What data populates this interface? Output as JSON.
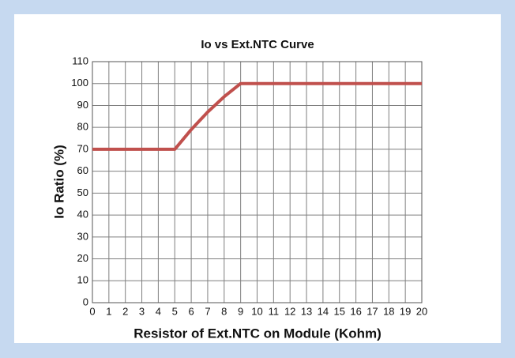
{
  "chart_data": {
    "type": "line",
    "title": "Io vs Ext.NTC Curve",
    "x_label": "Resistor of Ext.NTC on Module (Kohm)",
    "y_label": "Io Ratio (%)",
    "x": [
      0,
      5,
      6,
      7,
      8,
      9,
      20
    ],
    "values": [
      70,
      70,
      79,
      87,
      94,
      100,
      100
    ],
    "color": "#c0504d",
    "xlim": [
      0,
      20
    ],
    "xticks": [
      0,
      1,
      2,
      3,
      4,
      5,
      6,
      7,
      8,
      9,
      10,
      11,
      12,
      13,
      14,
      15,
      16,
      17,
      18,
      19,
      20
    ],
    "ylim": [
      0,
      110
    ],
    "yticks": [
      0,
      10,
      20,
      30,
      40,
      50,
      60,
      70,
      80,
      90,
      100,
      110
    ],
    "grid": true
  }
}
